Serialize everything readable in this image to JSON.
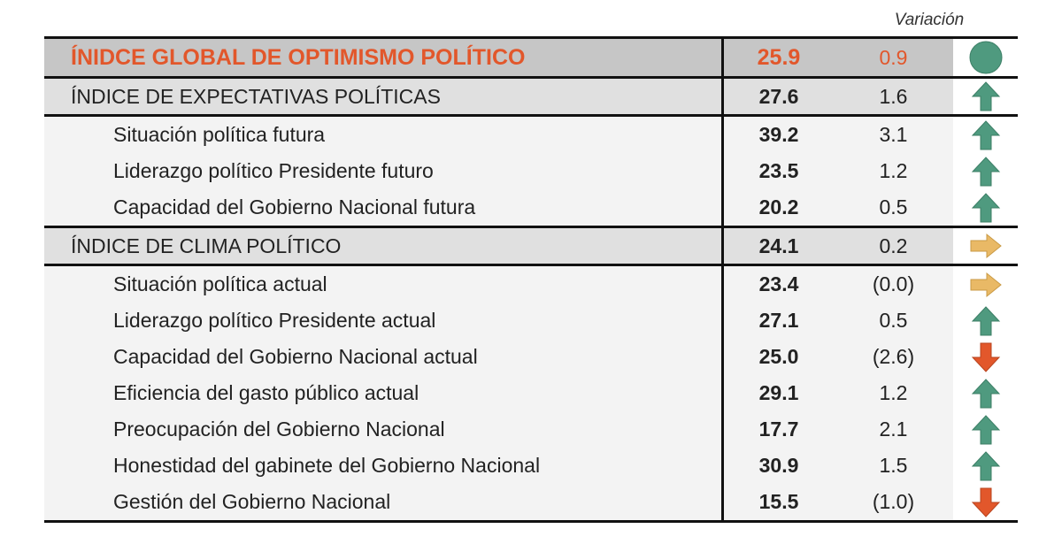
{
  "variation_header": "Variación",
  "colors": {
    "up": "#4f9a7f",
    "down": "#e2572b",
    "flat": "#e9b966",
    "neutral": "#4f9a7f",
    "highlight": "#e2572b"
  },
  "global": {
    "label": "ÍNIDCE GLOBAL DE OPTIMISMO POLÍTICO",
    "value": "25.9",
    "variation": "0.9",
    "icon": "circle-icon"
  },
  "sections": [
    {
      "label": "ÍNDICE DE EXPECTATIVAS POLÍTICAS",
      "value": "27.6",
      "variation": "1.6",
      "icon": "arrow-up-icon",
      "items": [
        {
          "label": "Situación política futura",
          "value": "39.2",
          "variation": "3.1",
          "icon": "arrow-up-icon"
        },
        {
          "label": "Liderazgo político Presidente futuro",
          "value": "23.5",
          "variation": "1.2",
          "icon": "arrow-up-icon"
        },
        {
          "label": "Capacidad del Gobierno Nacional futura",
          "value": "20.2",
          "variation": "0.5",
          "icon": "arrow-up-icon"
        }
      ]
    },
    {
      "label": "ÍNDICE DE CLIMA POLÍTICO",
      "value": "24.1",
      "variation": "0.2",
      "icon": "arrow-right-icon",
      "items": [
        {
          "label": "Situación política actual",
          "value": "23.4",
          "variation": "(0.0)",
          "icon": "arrow-right-icon"
        },
        {
          "label": "Liderazgo político Presidente actual",
          "value": "27.1",
          "variation": "0.5",
          "icon": "arrow-up-icon"
        },
        {
          "label": "Capacidad del Gobierno Nacional actual",
          "value": "25.0",
          "variation": "(2.6)",
          "icon": "arrow-down-icon"
        },
        {
          "label": "Eficiencia del gasto público actual",
          "value": "29.1",
          "variation": "1.2",
          "icon": "arrow-up-icon"
        },
        {
          "label": "Preocupación del Gobierno Nacional",
          "value": "17.7",
          "variation": "2.1",
          "icon": "arrow-up-icon"
        },
        {
          "label": "Honestidad del gabinete del Gobierno Nacional",
          "value": "30.9",
          "variation": "1.5",
          "icon": "arrow-up-icon"
        },
        {
          "label": "Gestión del Gobierno Nacional",
          "value": "15.5",
          "variation": "(1.0)",
          "icon": "arrow-down-icon"
        }
      ]
    }
  ]
}
